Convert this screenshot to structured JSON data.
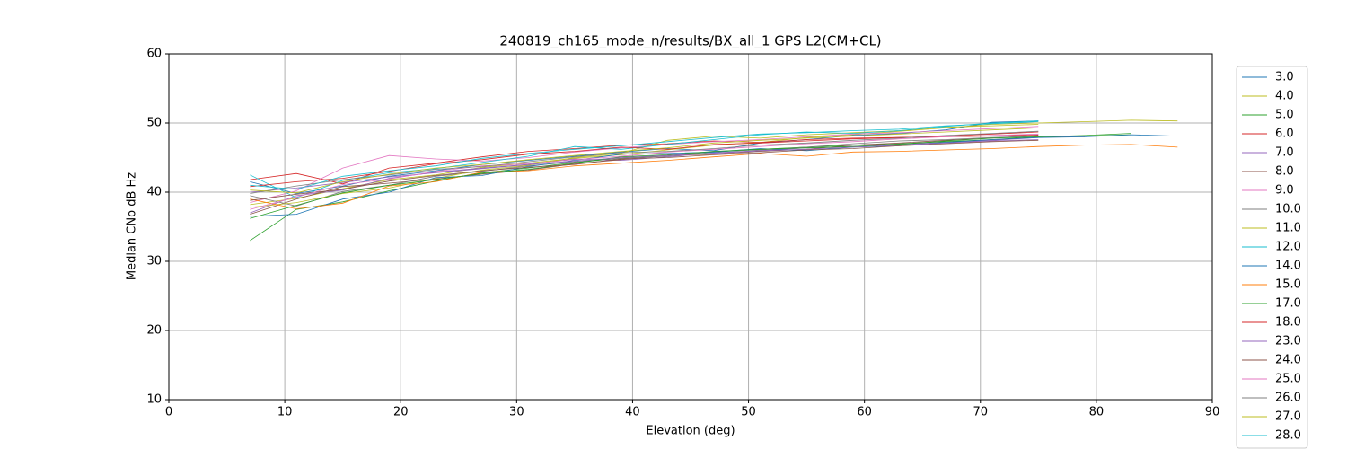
{
  "chart_data": {
    "type": "line",
    "title": "240819_ch165_mode_n/results/BX_all_1 GPS L2(CM+CL)",
    "xlabel": "Elevation (deg)",
    "ylabel": "Median CNo dB Hz",
    "xlim": [
      0,
      90
    ],
    "xticks": [
      0,
      10,
      20,
      30,
      40,
      50,
      60,
      70,
      80,
      90
    ],
    "ylim": [
      10,
      60
    ],
    "yticks": [
      10,
      20,
      30,
      40,
      50,
      60
    ],
    "grid": true,
    "legend_loc": "outside right",
    "x": [
      7,
      11,
      15,
      19,
      23,
      27,
      31,
      35,
      39,
      43,
      47,
      51,
      55,
      59,
      63,
      67,
      71,
      75,
      79,
      83,
      87
    ],
    "series": [
      {
        "name": "3.0",
        "color": "#1f77b4",
        "values": [
          41.5,
          39.8,
          40.9,
          42.3,
          43.1,
          44.0,
          44.6,
          45.2,
          45.8,
          46.3,
          46.0,
          47.1,
          47.6,
          48.2,
          48.5,
          49.0,
          50.1,
          50.3,
          null,
          null,
          null
        ]
      },
      {
        "name": "4.0",
        "color": "#bcbd22",
        "values": [
          38.2,
          39.1,
          40.5,
          41.8,
          42.5,
          43.6,
          44.2,
          44.9,
          45.4,
          46.1,
          46.8,
          47.2,
          47.9,
          48.3,
          48.8,
          49.3,
          49.8,
          50.0,
          50.2,
          50.4,
          50.3
        ]
      },
      {
        "name": "5.0",
        "color": "#2ca02c",
        "values": [
          33.0,
          37.5,
          38.6,
          40.2,
          41.6,
          42.8,
          43.5,
          44.3,
          44.9,
          45.3,
          45.8,
          46.2,
          46.5,
          46.8,
          47.0,
          47.3,
          47.6,
          48.0,
          48.1,
          48.3,
          null
        ]
      },
      {
        "name": "6.0",
        "color": "#d62728",
        "values": [
          41.8,
          42.7,
          41.2,
          43.5,
          44.2,
          45.1,
          45.9,
          46.3,
          46.8,
          47.0,
          47.4,
          47.2,
          47.6,
          47.8,
          47.9,
          48.0,
          48.1,
          48.3,
          null,
          null,
          null
        ]
      },
      {
        "name": "7.0",
        "color": "#9467bd",
        "values": [
          37.0,
          39.5,
          40.3,
          42.0,
          42.9,
          43.5,
          44.0,
          44.8,
          44.6,
          45.1,
          45.7,
          46.0,
          46.4,
          46.6,
          46.9,
          47.2,
          47.5,
          47.9,
          null,
          null,
          null
        ]
      },
      {
        "name": "8.0",
        "color": "#8c564b",
        "values": [
          36.8,
          39.0,
          40.8,
          41.3,
          41.9,
          42.6,
          43.2,
          44.1,
          44.7,
          45.3,
          45.5,
          45.9,
          46.2,
          46.8,
          47.1,
          47.5,
          47.8,
          48.2,
          null,
          null,
          null
        ]
      },
      {
        "name": "9.0",
        "color": "#e377c2",
        "values": [
          38.5,
          40.2,
          43.5,
          45.3,
          44.8,
          44.5,
          45.0,
          45.8,
          46.4,
          46.9,
          47.3,
          47.6,
          48.0,
          48.4,
          48.6,
          48.9,
          49.2,
          49.5,
          null,
          null,
          null
        ]
      },
      {
        "name": "10.0",
        "color": "#7f7f7f",
        "values": [
          39.5,
          38.0,
          40.1,
          41.0,
          42.3,
          43.0,
          43.8,
          44.4,
          44.9,
          45.2,
          45.9,
          46.1,
          46.5,
          47.0,
          47.4,
          47.6,
          47.9,
          48.1,
          48.0,
          null,
          null
        ]
      },
      {
        "name": "11.0",
        "color": "#bcbd22",
        "values": [
          37.8,
          38.5,
          39.8,
          40.6,
          42.0,
          43.2,
          43.9,
          45.0,
          45.6,
          47.5,
          48.1,
          47.8,
          48.3,
          48.6,
          48.9,
          49.4,
          49.6,
          49.8,
          null,
          null,
          null
        ]
      },
      {
        "name": "12.0",
        "color": "#17becf",
        "values": [
          42.5,
          39.2,
          41.7,
          42.8,
          43.4,
          44.3,
          45.2,
          46.6,
          46.2,
          46.9,
          47.6,
          48.3,
          48.7,
          48.5,
          48.9,
          49.5,
          50.0,
          50.3,
          null,
          null,
          null
        ]
      },
      {
        "name": "14.0",
        "color": "#1f77b4",
        "values": [
          36.5,
          36.8,
          39.0,
          40.0,
          42.1,
          42.4,
          43.7,
          44.6,
          45.5,
          45.6,
          45.8,
          46.3,
          46.0,
          46.5,
          46.7,
          47.2,
          47.6,
          47.9,
          48.0,
          48.3,
          48.1
        ]
      },
      {
        "name": "15.0",
        "color": "#ff7f0e",
        "values": [
          39.0,
          37.6,
          38.4,
          40.9,
          41.5,
          42.9,
          43.1,
          43.8,
          44.2,
          44.6,
          45.1,
          45.6,
          45.2,
          45.8,
          45.9,
          46.1,
          46.3,
          46.6,
          46.8,
          46.9,
          46.5
        ]
      },
      {
        "name": "17.0",
        "color": "#2ca02c",
        "values": [
          36.2,
          38.1,
          39.9,
          41.0,
          41.8,
          42.7,
          43.3,
          44.2,
          45.1,
          45.4,
          45.9,
          46.2,
          46.4,
          46.6,
          46.9,
          47.4,
          47.8,
          48.0,
          48.2,
          48.5,
          null
        ]
      },
      {
        "name": "18.0",
        "color": "#d62728",
        "values": [
          40.8,
          41.5,
          42.0,
          43.0,
          44.1,
          44.7,
          45.5,
          45.9,
          46.5,
          46.2,
          46.9,
          47.1,
          47.4,
          47.7,
          47.9,
          48.1,
          48.4,
          48.7,
          null,
          null,
          null
        ]
      },
      {
        "name": "23.0",
        "color": "#9467bd",
        "values": [
          40.0,
          40.6,
          41.4,
          42.2,
          42.8,
          43.4,
          44.0,
          44.5,
          45.0,
          45.3,
          45.6,
          46.0,
          46.2,
          46.5,
          46.8,
          47.1,
          47.4,
          47.6,
          null,
          null,
          null
        ]
      },
      {
        "name": "24.0",
        "color": "#8c564b",
        "values": [
          38.8,
          39.7,
          40.4,
          41.6,
          42.4,
          43.1,
          43.6,
          44.0,
          44.8,
          45.0,
          45.4,
          45.7,
          46.1,
          46.3,
          46.7,
          47.0,
          47.3,
          47.5,
          null,
          null,
          null
        ]
      },
      {
        "name": "25.0",
        "color": "#e377c2",
        "values": [
          37.5,
          39.3,
          41.1,
          41.9,
          43.0,
          43.8,
          44.1,
          44.7,
          45.2,
          45.8,
          46.2,
          46.6,
          47.0,
          47.3,
          47.7,
          48.0,
          48.2,
          48.4,
          null,
          null,
          null
        ]
      },
      {
        "name": "26.0",
        "color": "#7f7f7f",
        "values": [
          39.8,
          40.9,
          41.8,
          42.5,
          43.3,
          43.7,
          44.4,
          45.1,
          45.7,
          45.9,
          46.3,
          46.8,
          47.1,
          47.5,
          47.8,
          48.2,
          48.5,
          48.8,
          null,
          null,
          null
        ]
      },
      {
        "name": "27.0",
        "color": "#bcbd22",
        "values": [
          40.3,
          39.9,
          41.5,
          42.6,
          43.5,
          44.0,
          44.7,
          45.3,
          45.9,
          46.4,
          47.1,
          47.5,
          47.8,
          48.1,
          48.4,
          48.7,
          49.0,
          49.3,
          null,
          null,
          null
        ]
      },
      {
        "name": "28.0",
        "color": "#17becf",
        "values": [
          41.0,
          40.4,
          42.3,
          43.1,
          43.8,
          44.9,
          45.6,
          46.2,
          46.7,
          47.3,
          47.9,
          48.4,
          48.6,
          48.9,
          49.1,
          49.6,
          49.9,
          50.2,
          null,
          null,
          null
        ]
      }
    ]
  }
}
